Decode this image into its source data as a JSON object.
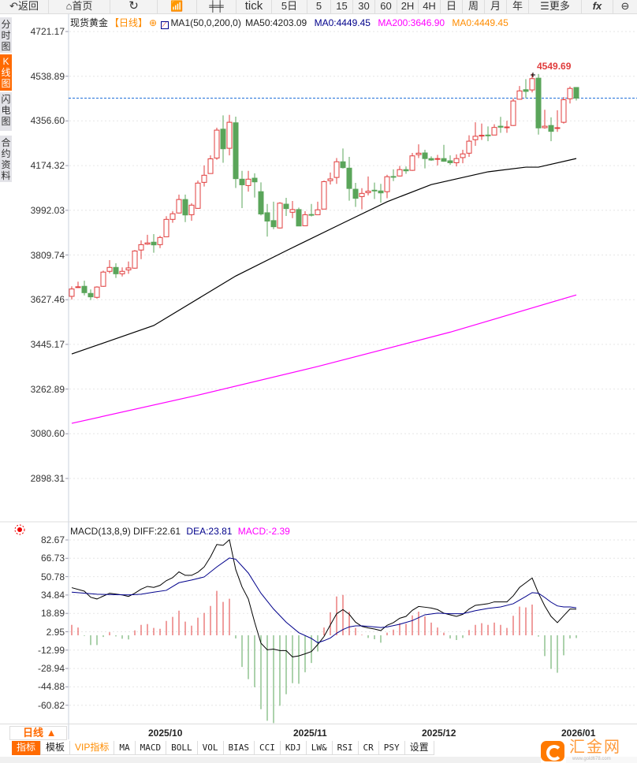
{
  "toolbar": {
    "back": "返回",
    "home": "首页",
    "tick": "tick",
    "five_day": "5日",
    "p5": "5",
    "p15": "15",
    "p30": "30",
    "p60": "60",
    "p2h": "2H",
    "p4h": "4H",
    "day": "日",
    "week": "周",
    "month": "月",
    "year": "年",
    "more": "更多",
    "fx": "fx"
  },
  "sidebar": [
    {
      "label": "分时图"
    },
    {
      "label": "K线图"
    },
    {
      "label": "闪电图"
    },
    {
      "label": "合约资料"
    }
  ],
  "header": {
    "instrument": "现货黄金",
    "period": "【日线】",
    "ma_name": "MA1(50,0,200,0)",
    "ma50": "MA50:4203.09",
    "ma0": "MA0:4449.45",
    "ma200": "MA200:3646.90",
    "ma0b": "MA0:4449.45"
  },
  "price_axis": [
    "4721.17",
    "4538.89",
    "4356.60",
    "4174.32",
    "3992.03",
    "3809.74",
    "3627.46",
    "3445.17",
    "3262.89",
    "3080.60",
    "2898.31"
  ],
  "high_label": "4549.69",
  "macd_header": {
    "name": "MACD(13,8,9)",
    "diff": "DIFF:22.61",
    "dea": "DEA:23.81",
    "macd": "MACD:-2.39"
  },
  "macd_axis": [
    "82.67",
    "66.73",
    "50.78",
    "34.84",
    "18.89",
    "2.95",
    "-12.99",
    "-28.94",
    "-44.88",
    "-60.82"
  ],
  "date_axis": [
    "2025/10",
    "2025/11",
    "2025/12",
    "2026/01"
  ],
  "period_button": "日线 ▲",
  "tabs": [
    "指标",
    "模板",
    "VIP指标",
    "MA",
    "MACD",
    "BOLL",
    "VOL",
    "BIAS",
    "CCI",
    "KDJ",
    "LW&",
    "RSI",
    "CR",
    "PSY",
    "设置"
  ],
  "logo": {
    "name": "汇金网",
    "url": "www.gold678.com"
  },
  "colors": {
    "up": "#e03c3c",
    "down": "#5aa55a",
    "ma50": "#000000",
    "ma200": "#ff00ff",
    "dea": "#00008b",
    "accent": "#ff6a00",
    "last_price": "#1e6fd9"
  },
  "chart_data": {
    "type": "candlestick",
    "title": "现货黄金 日线",
    "ylim": [
      2898.31,
      4721.17
    ],
    "last_price": 4449.45,
    "ohlc": [
      [
        3641,
        3682,
        3628,
        3671
      ],
      [
        3677,
        3701,
        3675,
        3680
      ],
      [
        3682,
        3705,
        3645,
        3656
      ],
      [
        3653,
        3669,
        3626,
        3639
      ],
      [
        3637,
        3682,
        3632,
        3679
      ],
      [
        3682,
        3746,
        3680,
        3740
      ],
      [
        3743,
        3789,
        3735,
        3759
      ],
      [
        3759,
        3776,
        3716,
        3733
      ],
      [
        3733,
        3759,
        3722,
        3743
      ],
      [
        3749,
        3783,
        3733,
        3757
      ],
      [
        3756,
        3830,
        3754,
        3826
      ],
      [
        3830,
        3869,
        3793,
        3852
      ],
      [
        3854,
        3892,
        3851,
        3859
      ],
      [
        3862,
        3895,
        3819,
        3851
      ],
      [
        3852,
        3888,
        3838,
        3881
      ],
      [
        3884,
        3968,
        3884,
        3955
      ],
      [
        3955,
        3988,
        3941,
        3978
      ],
      [
        3981,
        4056,
        3979,
        4036
      ],
      [
        4036,
        4056,
        3944,
        3973
      ],
      [
        3974,
        4021,
        3949,
        4013
      ],
      [
        4000,
        4113,
        3998,
        4103
      ],
      [
        4106,
        4175,
        4089,
        4135
      ],
      [
        4142,
        4216,
        4141,
        4202
      ],
      [
        4205,
        4329,
        4198,
        4319
      ],
      [
        4323,
        4379,
        4186,
        4243
      ],
      [
        4245,
        4381,
        4216,
        4351
      ],
      [
        4349,
        4374,
        4083,
        4121
      ],
      [
        4119,
        4153,
        4001,
        4096
      ],
      [
        4093,
        4153,
        4068,
        4119
      ],
      [
        4123,
        4143,
        4044,
        4108
      ],
      [
        4068,
        4106,
        3971,
        3977
      ],
      [
        3982,
        4018,
        3885,
        3948
      ],
      [
        3950,
        4027,
        3915,
        3925
      ],
      [
        3920,
        4025,
        3918,
        4021
      ],
      [
        4017,
        4043,
        3969,
        3999
      ],
      [
        3984,
        4030,
        3960,
        3995
      ],
      [
        3995,
        4003,
        3928,
        3928
      ],
      [
        3929,
        3988,
        3928,
        3974
      ],
      [
        3975,
        4018,
        3967,
        3973
      ],
      [
        3974,
        4027,
        3974,
        3994
      ],
      [
        3997,
        4113,
        3997,
        4109
      ],
      [
        4113,
        4146,
        4097,
        4120
      ],
      [
        4126,
        4205,
        4100,
        4190
      ],
      [
        4190,
        4244,
        4162,
        4166
      ],
      [
        4164,
        4210,
        4031,
        4081
      ],
      [
        4078,
        4104,
        4006,
        4041
      ],
      [
        4048,
        4082,
        3996,
        4061
      ],
      [
        4064,
        4130,
        4053,
        4070
      ],
      [
        4074,
        4105,
        4038,
        4072
      ],
      [
        4071,
        4100,
        4023,
        4063
      ],
      [
        4068,
        4137,
        4041,
        4129
      ],
      [
        4130,
        4159,
        4111,
        4128
      ],
      [
        4132,
        4173,
        4130,
        4158
      ],
      [
        4158,
        4171,
        4141,
        4153
      ],
      [
        4155,
        4226,
        4153,
        4214
      ],
      [
        4219,
        4261,
        4205,
        4225
      ],
      [
        4226,
        4239,
        4163,
        4203
      ],
      [
        4203,
        4212,
        4194,
        4197
      ],
      [
        4201,
        4218,
        4175,
        4203
      ],
      [
        4203,
        4259,
        4190,
        4192
      ],
      [
        4194,
        4216,
        4177,
        4186
      ],
      [
        4186,
        4220,
        4171,
        4203
      ],
      [
        4207,
        4239,
        4184,
        4222
      ],
      [
        4225,
        4298,
        4210,
        4274
      ],
      [
        4280,
        4351,
        4255,
        4294
      ],
      [
        4297,
        4346,
        4279,
        4298
      ],
      [
        4299,
        4334,
        4274,
        4297
      ],
      [
        4299,
        4343,
        4299,
        4330
      ],
      [
        4335,
        4373,
        4308,
        4331
      ],
      [
        4331,
        4357,
        4308,
        4332
      ],
      [
        4338,
        4448,
        4336,
        4438
      ],
      [
        4445,
        4499,
        4443,
        4479
      ],
      [
        4484,
        4527,
        4449,
        4477
      ],
      [
        4483,
        4549.69,
        4473,
        4529
      ],
      [
        4531,
        4548,
        4301,
        4328
      ],
      [
        4329,
        4402,
        4325,
        4335
      ],
      [
        4338,
        4371,
        4274,
        4314
      ],
      [
        4328,
        4400,
        4312,
        4329
      ],
      [
        4351,
        4454,
        4346,
        4443
      ],
      [
        4447,
        4497,
        4428,
        4489
      ],
      [
        4493,
        4493,
        4440,
        4449.45
      ]
    ],
    "ohlc_fields": [
      "open",
      "high",
      "low",
      "close"
    ],
    "ma50": [
      [
        0,
        3406
      ],
      [
        13,
        3522
      ],
      [
        26,
        3724
      ],
      [
        34,
        3827
      ],
      [
        43,
        3940
      ],
      [
        50,
        4027
      ],
      [
        57,
        4097
      ],
      [
        66,
        4149
      ],
      [
        72,
        4168
      ],
      [
        74,
        4168
      ],
      [
        80,
        4203.09
      ]
    ],
    "ma200": [
      [
        0,
        3123
      ],
      [
        20,
        3238
      ],
      [
        39,
        3355
      ],
      [
        60,
        3495
      ],
      [
        80,
        3646.9
      ]
    ],
    "macd": {
      "ylim": [
        -75,
        82.67
      ],
      "hist": [
        9.1,
        6.8,
        -0.5,
        -8.4,
        -8.4,
        -1.4,
        2.7,
        -0.9,
        -3,
        -3.6,
        4.3,
        9.1,
        9.8,
        6.4,
        5.7,
        12.5,
        16,
        21.4,
        11.9,
        8.4,
        15.3,
        19.4,
        25.5,
        38.5,
        29,
        31.7,
        -2.7,
        -27.4,
        -38,
        -45,
        -64,
        -74,
        -76,
        -61,
        -51,
        -41.5,
        -42,
        -32,
        -24,
        -14,
        6.8,
        20,
        33.7,
        35,
        20.5,
        6.4,
        0.5,
        -2.3,
        -3.4,
        -6.4,
        2.3,
        5,
        10.5,
        10,
        17.3,
        20.5,
        16.4,
        11,
        6.8,
        2.3,
        -2.7,
        -4.1,
        -2.3,
        4.6,
        9.1,
        10.5,
        9.1,
        11,
        9.1,
        6.4,
        16.9,
        24.9,
        24.2,
        26.7,
        -1.1,
        -18,
        -29,
        -32.4,
        -17.3,
        -2.7,
        -2.39
      ],
      "diff": [
        [
          0,
          41.3
        ],
        [
          2,
          38.3
        ],
        [
          3,
          33
        ],
        [
          4,
          31.5
        ],
        [
          5,
          34
        ],
        [
          6,
          36.5
        ],
        [
          8,
          35
        ],
        [
          9,
          33.7
        ],
        [
          10,
          36.5
        ],
        [
          11,
          40
        ],
        [
          12,
          42.4
        ],
        [
          13,
          41.5
        ],
        [
          14,
          43.3
        ],
        [
          15,
          47.4
        ],
        [
          16,
          50
        ],
        [
          17,
          55
        ],
        [
          18,
          52
        ],
        [
          19,
          52
        ],
        [
          20,
          54.7
        ],
        [
          21,
          59.3
        ],
        [
          22,
          68
        ],
        [
          23,
          78.7
        ],
        [
          24,
          78
        ],
        [
          25,
          82.8
        ],
        [
          26,
          57
        ],
        [
          27,
          42
        ],
        [
          28,
          31.5
        ],
        [
          29,
          11.4
        ],
        [
          30,
          -6.8
        ],
        [
          31,
          -12.5
        ],
        [
          32,
          -11.9
        ],
        [
          33,
          -13.2
        ],
        [
          34,
          -13.2
        ],
        [
          35,
          -18.7
        ],
        [
          36,
          -17.8
        ],
        [
          37,
          -16
        ],
        [
          38,
          -14
        ],
        [
          39,
          -8
        ],
        [
          40,
          -1
        ],
        [
          41,
          9
        ],
        [
          42,
          18.7
        ],
        [
          43,
          22.3
        ],
        [
          44,
          18.2
        ],
        [
          45,
          11.4
        ],
        [
          46,
          7.8
        ],
        [
          47,
          6.4
        ],
        [
          48,
          5.5
        ],
        [
          49,
          4.1
        ],
        [
          50,
          8.7
        ],
        [
          51,
          11
        ],
        [
          52,
          14.8
        ],
        [
          53,
          16.4
        ],
        [
          54,
          21.7
        ],
        [
          55,
          25
        ],
        [
          56,
          24.4
        ],
        [
          57,
          23.7
        ],
        [
          58,
          22.3
        ],
        [
          59,
          19.2
        ],
        [
          60,
          17.8
        ],
        [
          61,
          16.4
        ],
        [
          62,
          18.2
        ],
        [
          63,
          22.8
        ],
        [
          64,
          26
        ],
        [
          65,
          26.7
        ],
        [
          66,
          27.4
        ],
        [
          67,
          29
        ],
        [
          69,
          29
        ],
        [
          70,
          34.2
        ],
        [
          71,
          41.5
        ],
        [
          72,
          45.6
        ],
        [
          73,
          49.7
        ],
        [
          74,
          36.5
        ],
        [
          75,
          25.5
        ],
        [
          76,
          16.4
        ],
        [
          77,
          11
        ],
        [
          78,
          17
        ],
        [
          79,
          22.8
        ],
        [
          80,
          22.61
        ]
      ],
      "dea": [
        [
          0,
          37.4
        ],
        [
          4,
          35.6
        ],
        [
          9,
          35
        ],
        [
          11,
          35.6
        ],
        [
          13,
          37.4
        ],
        [
          15,
          39
        ],
        [
          17,
          45.6
        ],
        [
          19,
          47.9
        ],
        [
          21,
          50.6
        ],
        [
          23,
          59.3
        ],
        [
          25,
          67
        ],
        [
          26,
          66
        ],
        [
          28,
          54
        ],
        [
          30,
          36.5
        ],
        [
          32,
          22.8
        ],
        [
          34,
          11.4
        ],
        [
          36,
          2.3
        ],
        [
          38,
          -2.7
        ],
        [
          39,
          -6.4
        ],
        [
          40,
          -4.6
        ],
        [
          41,
          -2.3
        ],
        [
          42,
          1.8
        ],
        [
          43,
          5
        ],
        [
          44,
          7.3
        ],
        [
          45,
          8.2
        ],
        [
          46,
          8.2
        ],
        [
          47,
          7.8
        ],
        [
          48,
          7.3
        ],
        [
          49,
          6.8
        ],
        [
          50,
          7.3
        ],
        [
          52,
          9.6
        ],
        [
          54,
          12.8
        ],
        [
          56,
          17.8
        ],
        [
          58,
          19.2
        ],
        [
          60,
          18.7
        ],
        [
          62,
          18.7
        ],
        [
          64,
          21.4
        ],
        [
          66,
          23.3
        ],
        [
          68,
          24.6
        ],
        [
          70,
          27.4
        ],
        [
          72,
          33.7
        ],
        [
          73,
          37
        ],
        [
          74,
          36.5
        ],
        [
          75,
          32.8
        ],
        [
          76,
          28.7
        ],
        [
          77,
          25.5
        ],
        [
          78,
          24.6
        ],
        [
          79,
          24.6
        ],
        [
          80,
          23.81
        ]
      ]
    }
  }
}
